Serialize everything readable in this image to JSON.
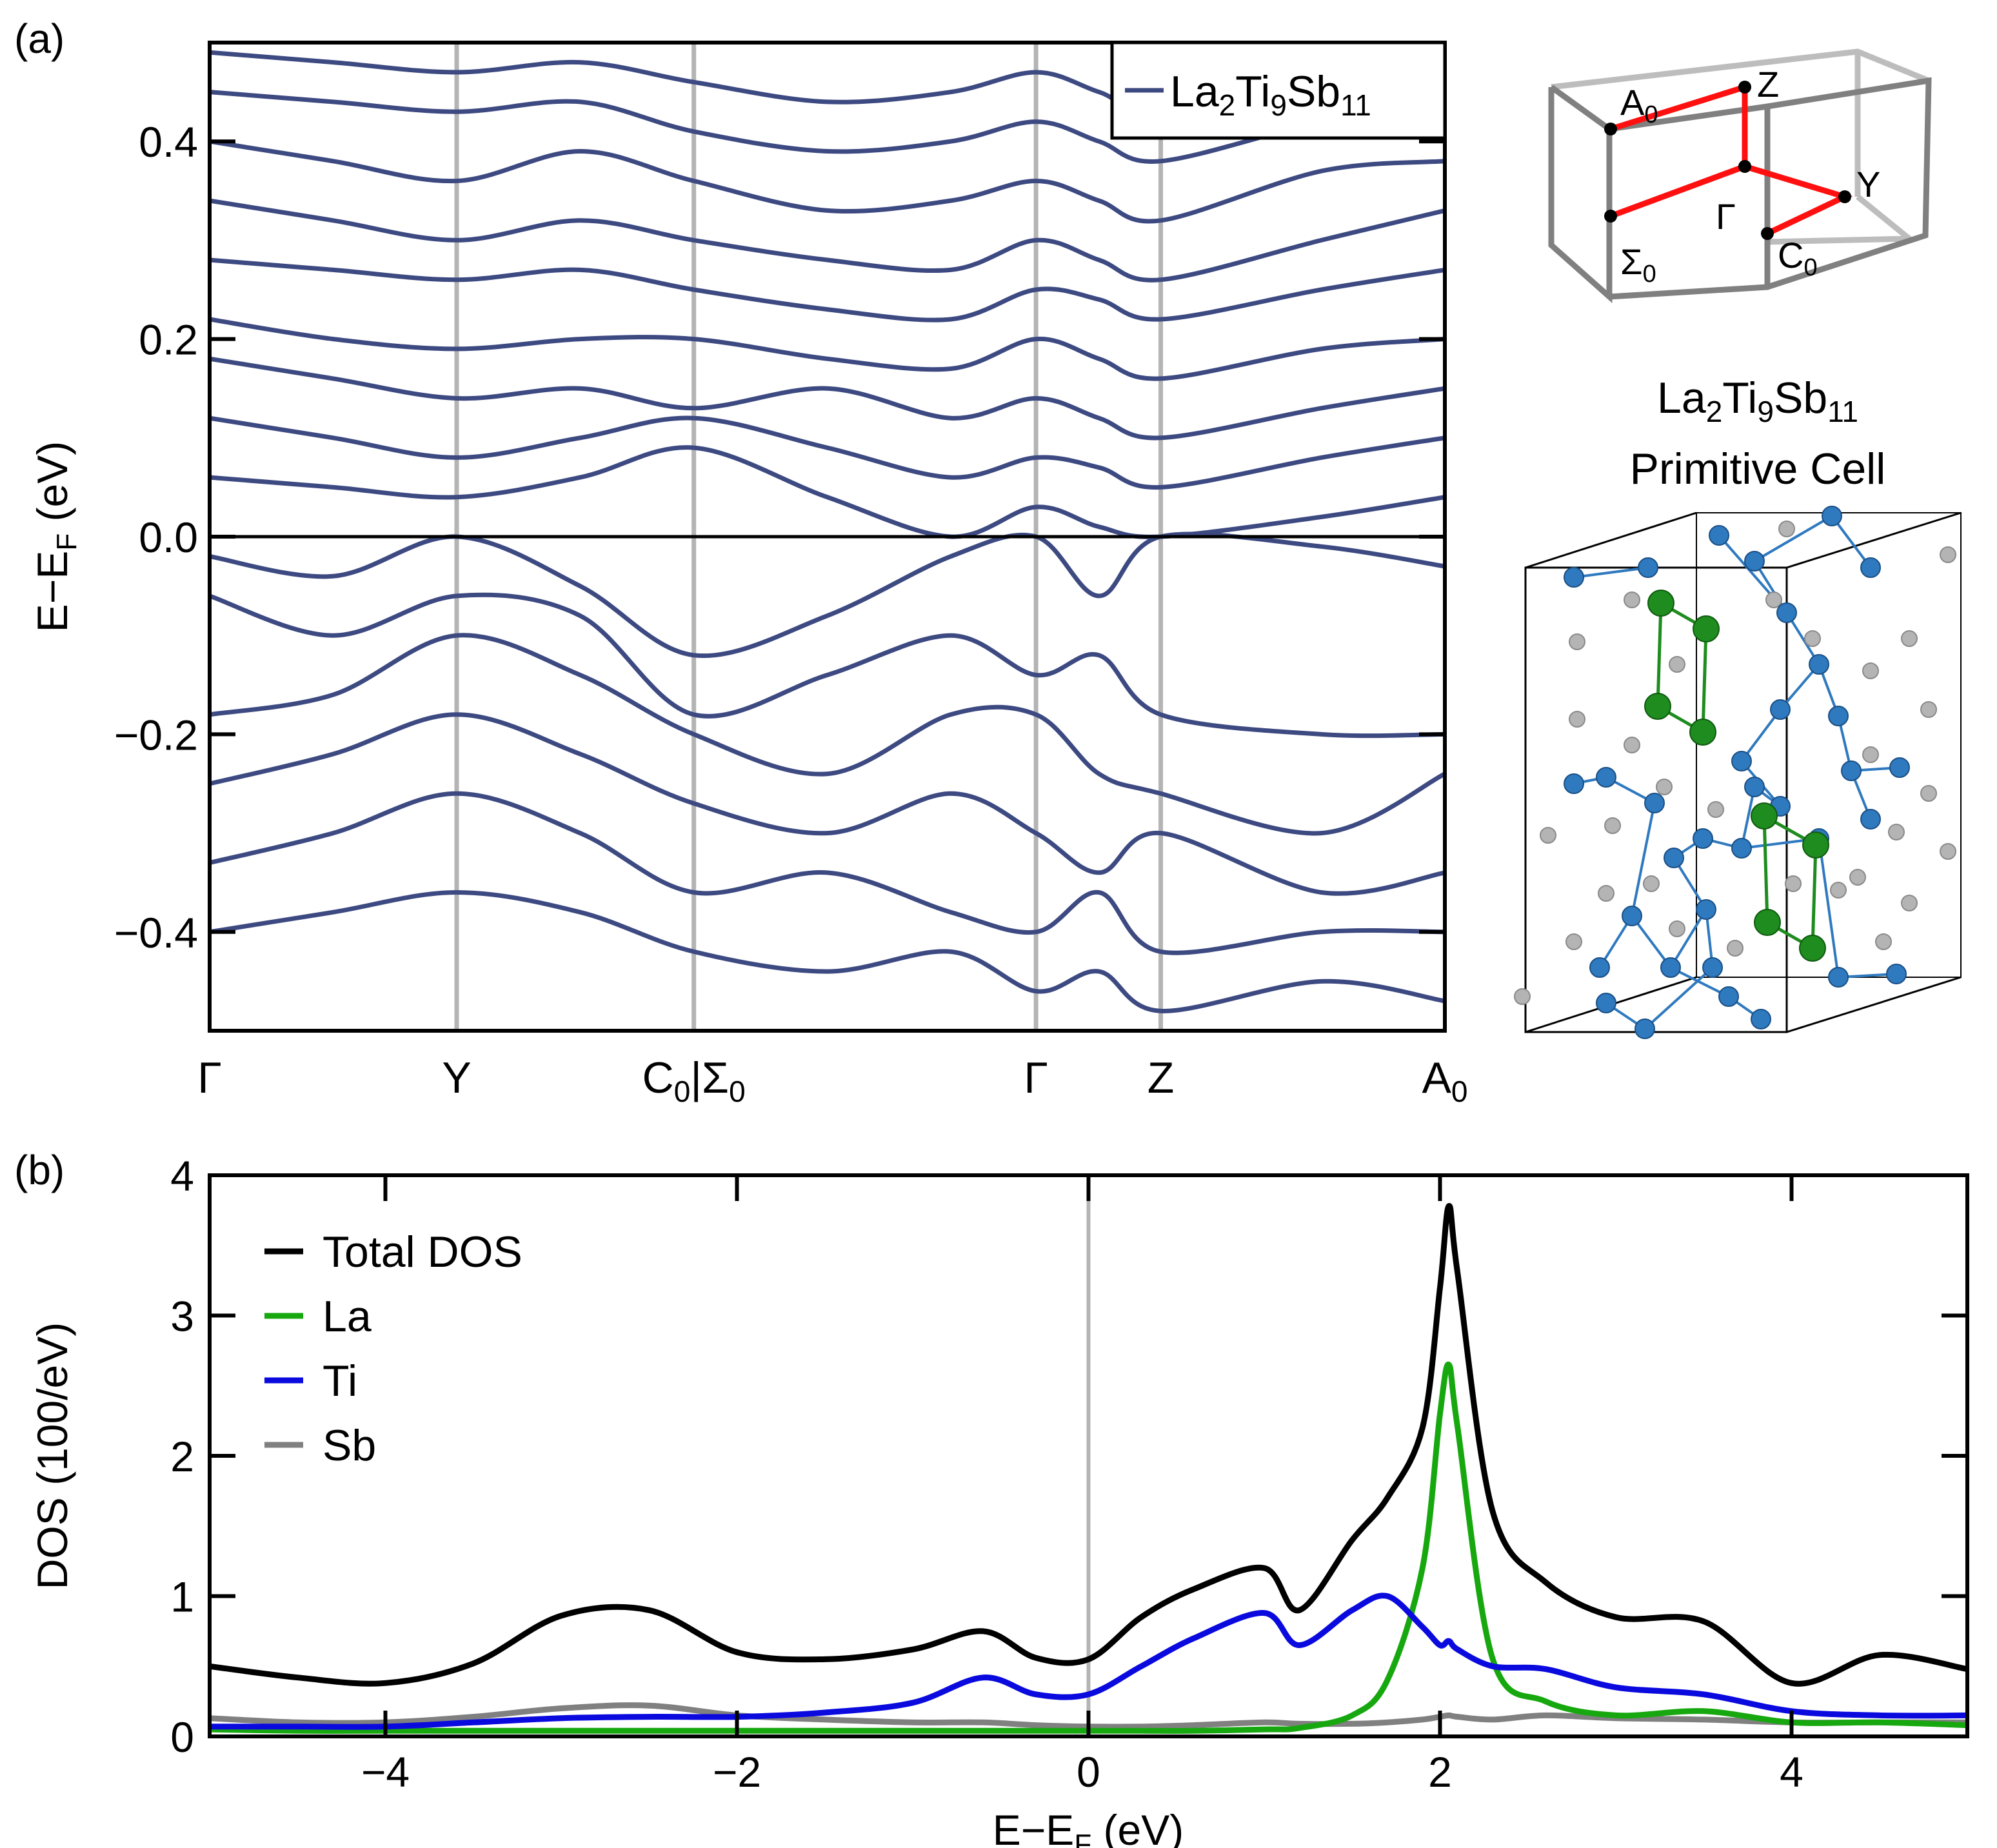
{
  "chart_data": [
    {
      "panel_label": "(a)",
      "type": "line",
      "title": "",
      "xlabel": "",
      "ylabel_parts": [
        "E−E",
        "F",
        " (eV)"
      ],
      "ylim": [
        -0.5,
        0.5
      ],
      "yticks": [
        -0.4,
        -0.2,
        0.0,
        0.2,
        0.4
      ],
      "ytick_labels": [
        "−0.4",
        "−0.2",
        "0.0",
        "0.2",
        "0.4"
      ],
      "k_path": [
        {
          "main": "Γ",
          "sub": "",
          "main2": "",
          "sub2": "",
          "k": 0
        },
        {
          "main": "Y",
          "sub": "",
          "main2": "",
          "sub2": "",
          "k": 0.2
        },
        {
          "main": "C",
          "sub": "0",
          "main2": "|Σ",
          "sub2": "0",
          "k": 0.392
        },
        {
          "main": "Γ",
          "sub": "",
          "main2": "",
          "sub2": "",
          "k": 0.669
        },
        {
          "main": "Z",
          "sub": "",
          "main2": "",
          "sub2": "",
          "k": 0.77
        },
        {
          "main": "A",
          "sub": "0",
          "main2": "",
          "sub2": "",
          "k": 1
        }
      ],
      "legend": {
        "prefix": "La",
        "n1": "2",
        "mid": "Ti",
        "n2": "9",
        "suffix": "Sb",
        "n3": "11",
        "color": "#3d4a82"
      },
      "band_color": "#3d4a82",
      "fermi_level": 0.0,
      "series": [
        {
          "name": "band-v1",
          "k": [
            0,
            0.1,
            0.2,
            0.3,
            0.392,
            0.5,
            0.6,
            0.669,
            0.72,
            0.77,
            0.9,
            1
          ],
          "values": [
            -0.02,
            -0.04,
            0.0,
            -0.05,
            -0.12,
            -0.08,
            -0.02,
            0.0,
            -0.06,
            0.0,
            -0.01,
            -0.03
          ]
        },
        {
          "name": "band-v2",
          "k": [
            0,
            0.1,
            0.2,
            0.3,
            0.392,
            0.5,
            0.6,
            0.669,
            0.72,
            0.77,
            0.9,
            1
          ],
          "values": [
            -0.06,
            -0.1,
            -0.06,
            -0.08,
            -0.18,
            -0.14,
            -0.1,
            -0.14,
            -0.12,
            -0.18,
            -0.2,
            -0.2
          ]
        },
        {
          "name": "band-v3",
          "k": [
            0,
            0.1,
            0.2,
            0.3,
            0.392,
            0.5,
            0.6,
            0.669,
            0.72,
            0.77,
            0.9,
            1
          ],
          "values": [
            -0.18,
            -0.16,
            -0.1,
            -0.14,
            -0.2,
            -0.24,
            -0.18,
            -0.18,
            -0.24,
            -0.26,
            -0.3,
            -0.24
          ]
        },
        {
          "name": "band-v4",
          "k": [
            0,
            0.1,
            0.2,
            0.3,
            0.392,
            0.5,
            0.6,
            0.669,
            0.72,
            0.77,
            0.9,
            1
          ],
          "values": [
            -0.25,
            -0.22,
            -0.18,
            -0.22,
            -0.27,
            -0.3,
            -0.26,
            -0.3,
            -0.34,
            -0.3,
            -0.36,
            -0.34
          ]
        },
        {
          "name": "band-v5",
          "k": [
            0,
            0.1,
            0.2,
            0.3,
            0.392,
            0.5,
            0.6,
            0.669,
            0.72,
            0.77,
            0.9,
            1
          ],
          "values": [
            -0.33,
            -0.3,
            -0.26,
            -0.3,
            -0.36,
            -0.34,
            -0.38,
            -0.4,
            -0.36,
            -0.42,
            -0.4,
            -0.4
          ]
        },
        {
          "name": "band-v6",
          "k": [
            0,
            0.1,
            0.2,
            0.3,
            0.392,
            0.5,
            0.6,
            0.669,
            0.72,
            0.77,
            0.9,
            1
          ],
          "values": [
            -0.4,
            -0.38,
            -0.36,
            -0.38,
            -0.42,
            -0.44,
            -0.42,
            -0.46,
            -0.44,
            -0.48,
            -0.45,
            -0.47
          ]
        },
        {
          "name": "band-c1",
          "k": [
            0,
            0.1,
            0.2,
            0.3,
            0.392,
            0.5,
            0.6,
            0.669,
            0.72,
            0.77,
            0.9,
            1
          ],
          "values": [
            0.06,
            0.05,
            0.04,
            0.06,
            0.09,
            0.04,
            0.0,
            0.03,
            0.01,
            0.0,
            0.02,
            0.04
          ]
        },
        {
          "name": "band-c2",
          "k": [
            0,
            0.1,
            0.2,
            0.3,
            0.392,
            0.5,
            0.6,
            0.669,
            0.72,
            0.77,
            0.9,
            1
          ],
          "values": [
            0.12,
            0.1,
            0.08,
            0.1,
            0.12,
            0.09,
            0.06,
            0.08,
            0.07,
            0.05,
            0.08,
            0.1
          ]
        },
        {
          "name": "band-c3",
          "k": [
            0,
            0.1,
            0.2,
            0.3,
            0.392,
            0.5,
            0.6,
            0.669,
            0.72,
            0.77,
            0.9,
            1
          ],
          "values": [
            0.18,
            0.16,
            0.14,
            0.15,
            0.13,
            0.15,
            0.12,
            0.14,
            0.12,
            0.1,
            0.13,
            0.15
          ]
        },
        {
          "name": "band-c4",
          "k": [
            0,
            0.1,
            0.2,
            0.3,
            0.392,
            0.5,
            0.6,
            0.669,
            0.72,
            0.77,
            0.9,
            1
          ],
          "values": [
            0.22,
            0.2,
            0.19,
            0.2,
            0.2,
            0.18,
            0.17,
            0.2,
            0.18,
            0.16,
            0.19,
            0.2
          ]
        },
        {
          "name": "band-c5",
          "k": [
            0,
            0.1,
            0.2,
            0.3,
            0.392,
            0.5,
            0.6,
            0.669,
            0.72,
            0.77,
            0.9,
            1
          ],
          "values": [
            0.28,
            0.27,
            0.26,
            0.27,
            0.25,
            0.23,
            0.22,
            0.25,
            0.24,
            0.22,
            0.25,
            0.27
          ]
        },
        {
          "name": "band-c6",
          "k": [
            0,
            0.1,
            0.2,
            0.3,
            0.392,
            0.5,
            0.6,
            0.669,
            0.72,
            0.77,
            0.9,
            1
          ],
          "values": [
            0.34,
            0.32,
            0.3,
            0.32,
            0.3,
            0.28,
            0.27,
            0.3,
            0.28,
            0.26,
            0.3,
            0.33
          ]
        },
        {
          "name": "band-c7",
          "k": [
            0,
            0.1,
            0.2,
            0.3,
            0.392,
            0.5,
            0.6,
            0.669,
            0.72,
            0.77,
            0.9,
            1
          ],
          "values": [
            0.4,
            0.38,
            0.36,
            0.39,
            0.36,
            0.33,
            0.34,
            0.36,
            0.34,
            0.32,
            0.37,
            0.38
          ]
        },
        {
          "name": "band-c8",
          "k": [
            0,
            0.1,
            0.2,
            0.3,
            0.392,
            0.5,
            0.6,
            0.669,
            0.72,
            0.77,
            0.9,
            1
          ],
          "values": [
            0.45,
            0.44,
            0.43,
            0.44,
            0.41,
            0.39,
            0.4,
            0.42,
            0.4,
            0.38,
            0.42,
            0.44
          ]
        },
        {
          "name": "band-c9",
          "k": [
            0,
            0.1,
            0.2,
            0.3,
            0.392,
            0.5,
            0.6,
            0.669,
            0.72,
            0.77,
            0.9,
            1
          ],
          "values": [
            0.49,
            0.48,
            0.47,
            0.48,
            0.46,
            0.44,
            0.45,
            0.47,
            0.45,
            0.43,
            0.47,
            0.48
          ]
        }
      ]
    },
    {
      "panel_label": "(b)",
      "type": "line",
      "title": "",
      "xlabel_parts": [
        "E−E",
        "F",
        " (eV)"
      ],
      "ylabel": "DOS (100/eV)",
      "xlim": [
        -5,
        5
      ],
      "ylim": [
        0,
        4
      ],
      "xticks": [
        -4,
        -2,
        0,
        2,
        4
      ],
      "xtick_labels": [
        "−4",
        "−2",
        "0",
        "2",
        "4"
      ],
      "yticks": [
        0,
        1,
        2,
        3,
        4
      ],
      "ytick_labels": [
        "0",
        "1",
        "2",
        "3",
        "4"
      ],
      "fermi_level": 0,
      "x": [
        -5,
        -4.5,
        -4,
        -3.5,
        -3,
        -2.5,
        -2,
        -1.5,
        -1,
        -0.6,
        -0.3,
        0,
        0.3,
        0.6,
        1,
        1.2,
        1.5,
        1.7,
        1.9,
        2.0,
        2.05,
        2.1,
        2.3,
        2.6,
        3,
        3.5,
        4,
        4.5,
        5
      ],
      "series": [
        {
          "name": "Total DOS",
          "color": "#000000",
          "values": [
            0.5,
            0.42,
            0.38,
            0.52,
            0.86,
            0.9,
            0.6,
            0.55,
            0.62,
            0.75,
            0.56,
            0.55,
            0.85,
            1.05,
            1.2,
            0.9,
            1.4,
            1.7,
            2.2,
            3.2,
            3.78,
            3.3,
            1.6,
            1.1,
            0.85,
            0.82,
            0.38,
            0.58,
            0.48
          ]
        },
        {
          "name": "La",
          "color": "#17a80f",
          "values": [
            0.05,
            0.04,
            0.04,
            0.04,
            0.04,
            0.04,
            0.04,
            0.04,
            0.04,
            0.04,
            0.04,
            0.04,
            0.04,
            0.04,
            0.05,
            0.06,
            0.15,
            0.4,
            1.2,
            2.3,
            2.65,
            2.2,
            0.55,
            0.25,
            0.15,
            0.18,
            0.1,
            0.1,
            0.08
          ]
        },
        {
          "name": "Ti",
          "color": "#0a0adf",
          "values": [
            0.07,
            0.07,
            0.07,
            0.1,
            0.13,
            0.14,
            0.14,
            0.17,
            0.24,
            0.42,
            0.3,
            0.3,
            0.5,
            0.7,
            0.88,
            0.65,
            0.9,
            1.0,
            0.78,
            0.65,
            0.68,
            0.62,
            0.5,
            0.48,
            0.35,
            0.3,
            0.18,
            0.15,
            0.15
          ]
        },
        {
          "name": "Sb",
          "color": "#808080",
          "values": [
            0.13,
            0.1,
            0.1,
            0.14,
            0.2,
            0.22,
            0.15,
            0.12,
            0.1,
            0.1,
            0.08,
            0.07,
            0.07,
            0.08,
            0.1,
            0.09,
            0.09,
            0.1,
            0.12,
            0.14,
            0.15,
            0.14,
            0.12,
            0.15,
            0.13,
            0.12,
            0.1,
            0.1,
            0.1
          ]
        }
      ]
    }
  ],
  "inset": {
    "bz_labels": [
      {
        "main": "A",
        "sub": "0"
      },
      {
        "main": "Z",
        "sub": ""
      },
      {
        "main": "Y",
        "sub": ""
      },
      {
        "main": "Γ",
        "sub": ""
      },
      {
        "main": "Σ",
        "sub": "0"
      },
      {
        "main": "C",
        "sub": "0"
      }
    ],
    "formula": {
      "prefix": "La",
      "n1": "2",
      "mid": "Ti",
      "n2": "9",
      "suffix": "Sb",
      "n3": "11"
    },
    "subtitle": "Primitive Cell",
    "colors": {
      "bz_frame": "#808080",
      "bz_back": "#bdbdbd",
      "k_path": "#ff1010",
      "la_atom": "#1e8c1e",
      "ti_atom": "#2f79bf",
      "sb_atom": "#b4b4b4"
    }
  }
}
